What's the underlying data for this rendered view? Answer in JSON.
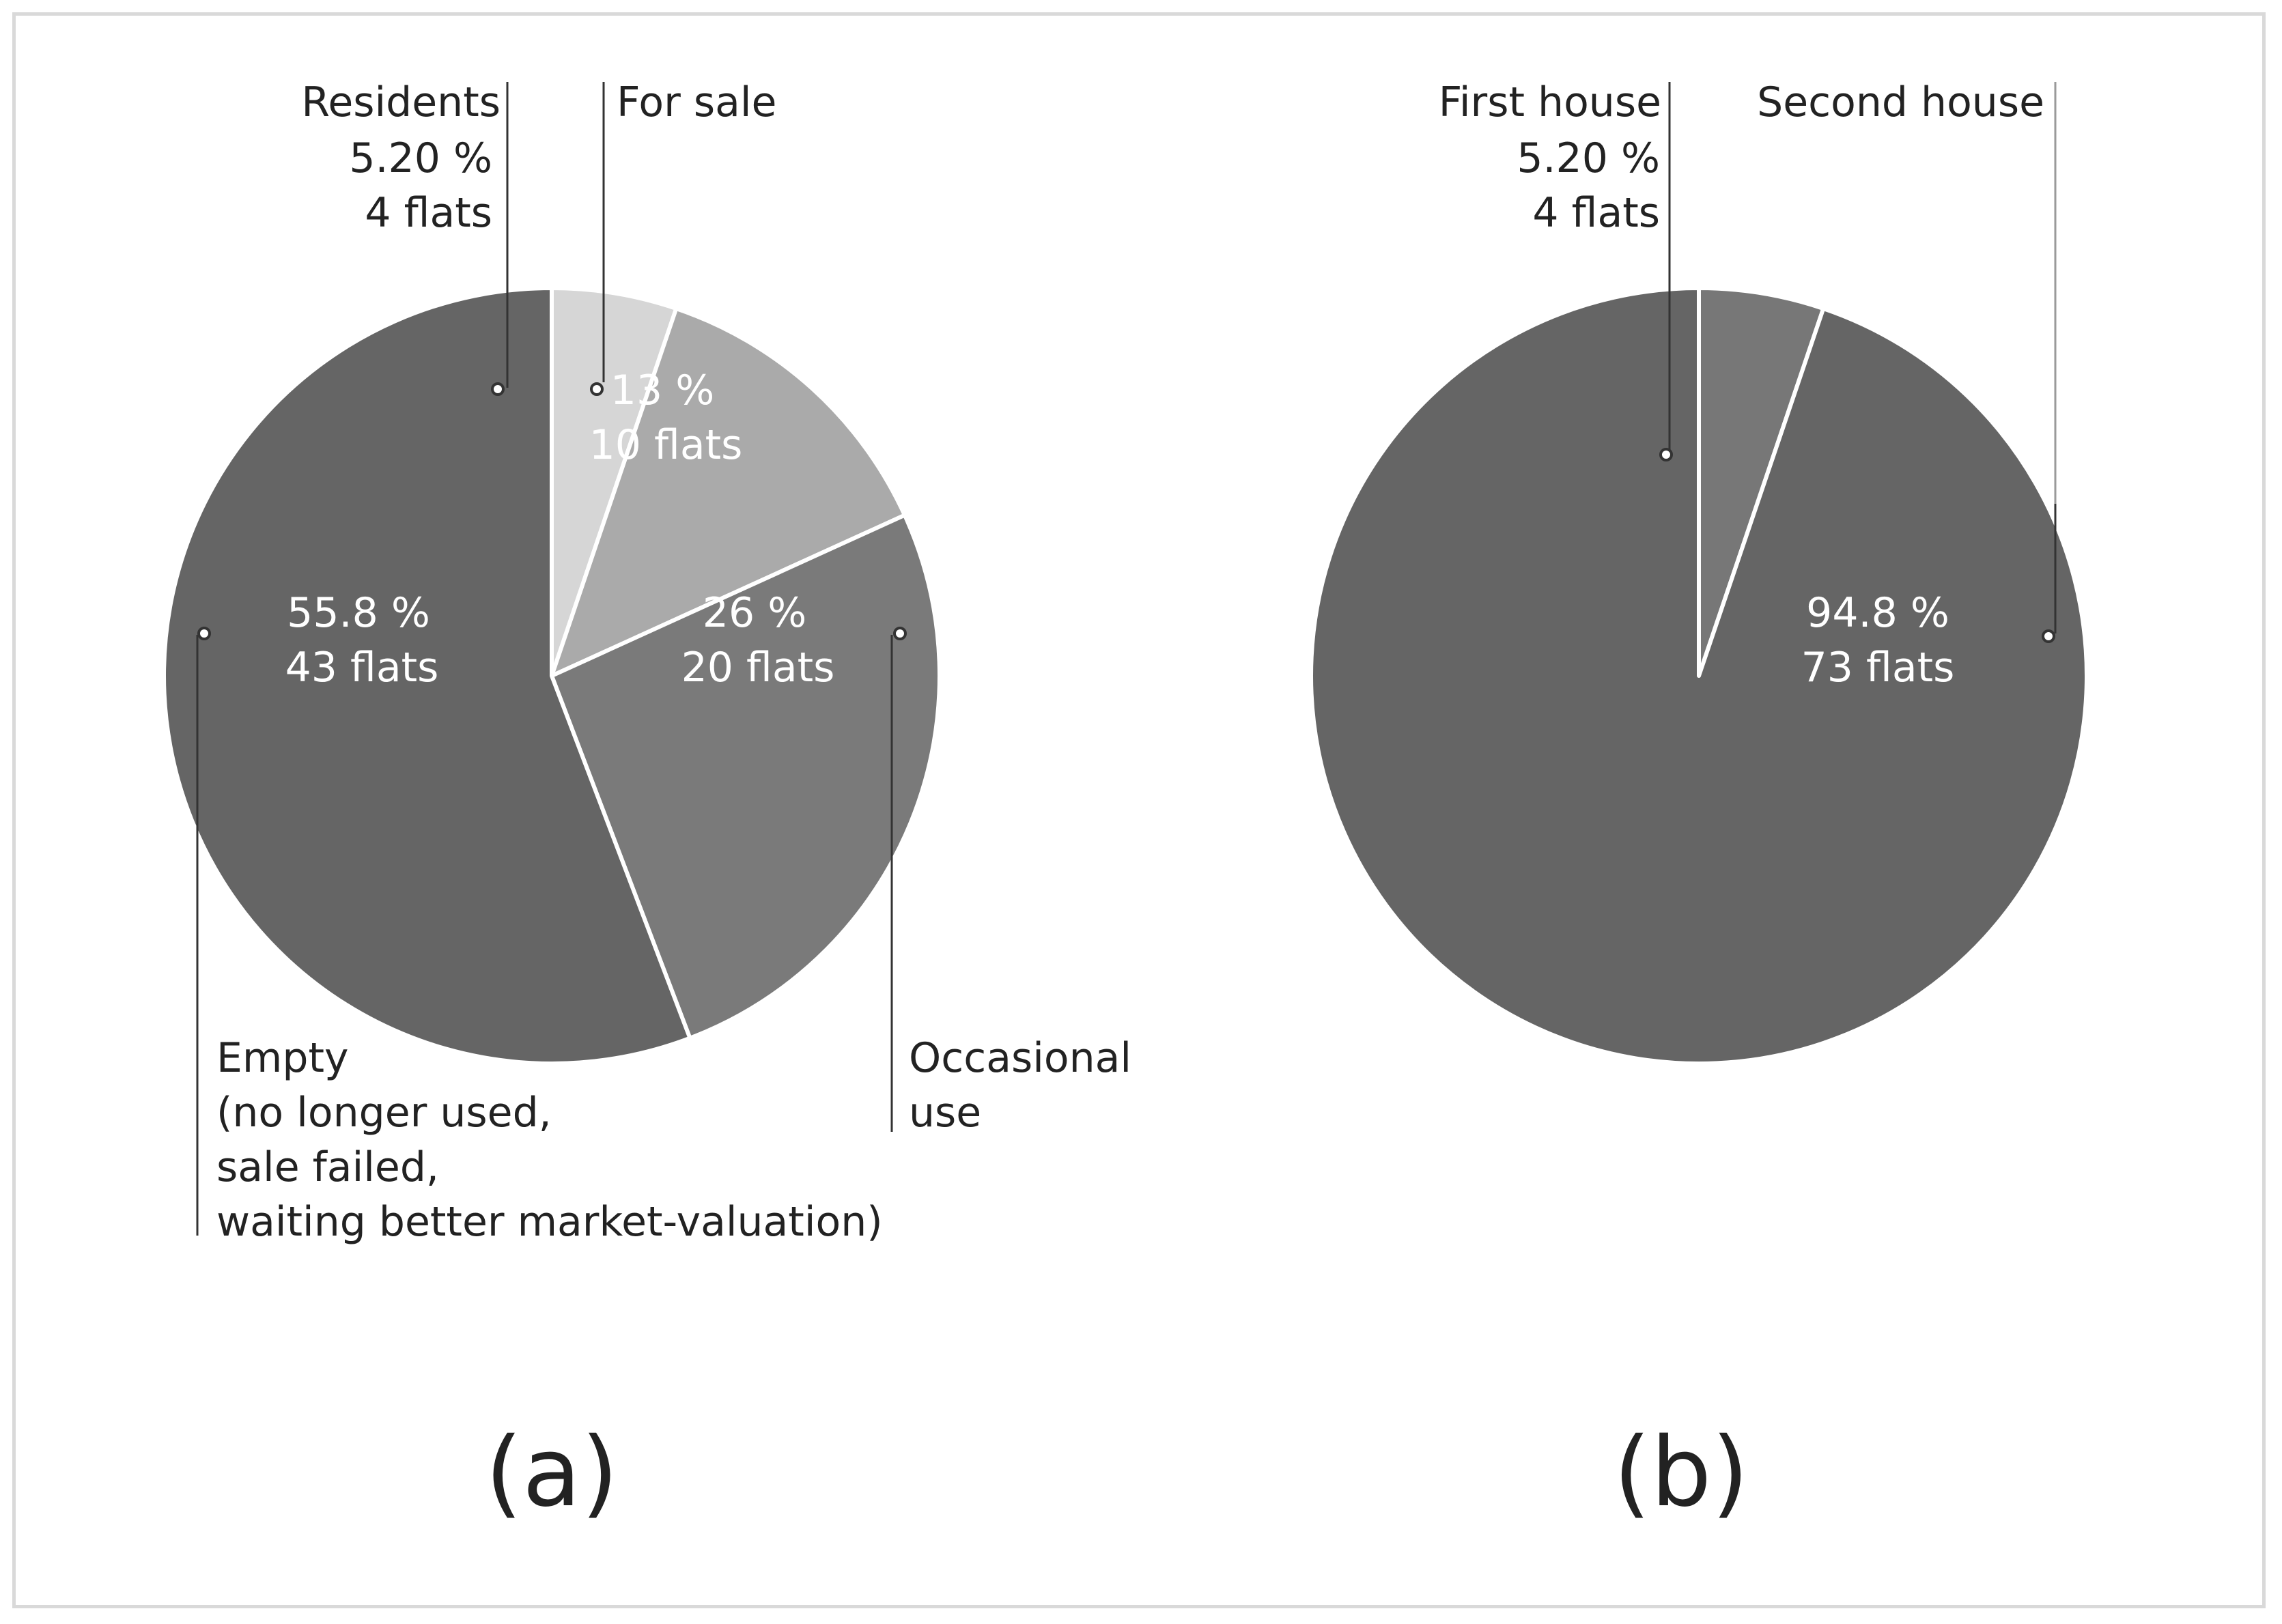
{
  "chart_data": [
    {
      "type": "pie",
      "panel_label": "(a)",
      "slices": [
        {
          "id": "residents",
          "label": "Residents",
          "percent": 5.2,
          "percent_text": "5.20 %",
          "flats_text": "4 flats",
          "color": "#d6d6d6"
        },
        {
          "id": "for-sale",
          "label": "For sale",
          "percent": 13,
          "percent_text": "13 %",
          "flats_text": "10 flats",
          "color": "#aaaaaa"
        },
        {
          "id": "occasional",
          "label_lines": [
            "Occasional",
            "use"
          ],
          "percent": 26,
          "percent_text": "26 %",
          "flats_text": "20 flats",
          "color": "#7a7a7a"
        },
        {
          "id": "empty",
          "label_lines": [
            "Empty",
            "(no longer used,",
            "sale failed,",
            "waiting better market-valuation)"
          ],
          "percent": 55.8,
          "percent_text": "55.8 %",
          "flats_text": "43 flats",
          "color": "#656565"
        }
      ]
    },
    {
      "type": "pie",
      "panel_label": "(b)",
      "slices": [
        {
          "id": "first-house",
          "label": "First house",
          "percent": 5.2,
          "percent_text": "5.20 %",
          "flats_text": "4 flats",
          "color": "#777777"
        },
        {
          "id": "second-house",
          "label": "Second house",
          "percent": 94.8,
          "percent_text": "94.8 %",
          "flats_text": "73 flats",
          "color": "#656565"
        }
      ]
    }
  ]
}
